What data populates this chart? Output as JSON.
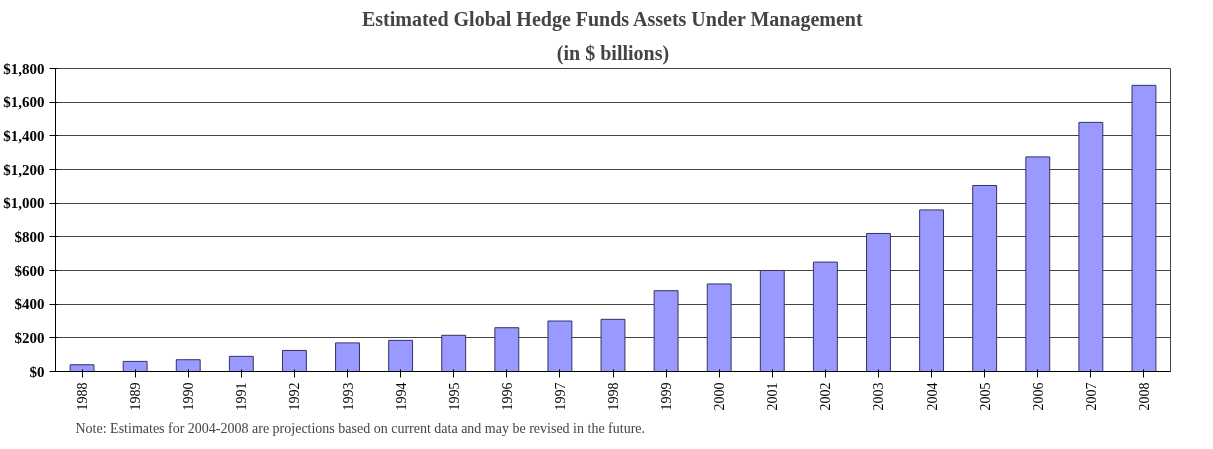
{
  "chart_data": {
    "type": "bar",
    "title": "Estimated Global Hedge Funds Assets Under Management",
    "subtitle": "(in $ billions)",
    "categories": [
      "1988",
      "1989",
      "1990",
      "1991",
      "1992",
      "1993",
      "1994",
      "1995",
      "1996",
      "1997",
      "1998",
      "1999",
      "2000",
      "2001",
      "2002",
      "2003",
      "2004",
      "2005",
      "2006",
      "2007",
      "2008"
    ],
    "values": [
      40,
      60,
      70,
      90,
      125,
      170,
      185,
      215,
      260,
      300,
      310,
      480,
      520,
      600,
      650,
      820,
      960,
      1105,
      1275,
      1480,
      1700
    ],
    "color": "#9999ff",
    "ylim": [
      0,
      1800
    ],
    "yticks": [
      {
        "value": 0,
        "label": "$0"
      },
      {
        "value": 200,
        "label": "$200"
      },
      {
        "value": 400,
        "label": "$400"
      },
      {
        "value": 600,
        "label": "$600"
      },
      {
        "value": 800,
        "label": "$800"
      },
      {
        "value": 1000,
        "label": "$1,000"
      },
      {
        "value": 1200,
        "label": "$1,200"
      },
      {
        "value": 1400,
        "label": "$1,400"
      },
      {
        "value": 1600,
        "label": "$1,600"
      },
      {
        "value": 1800,
        "label": "$1,800"
      }
    ],
    "grid": "y",
    "annotations": [
      "Note: Estimates for 2004-2008 are projections based on current data and may be revised in the future."
    ]
  }
}
